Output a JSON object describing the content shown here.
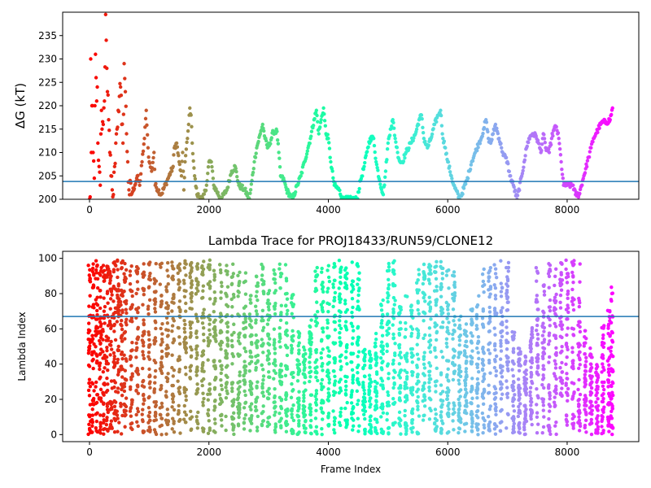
{
  "chart_data": [
    {
      "type": "scatter",
      "title": "",
      "xlabel": "",
      "ylabel": "ΔG (kT)",
      "xlim": [
        -450,
        9200
      ],
      "ylim": [
        200,
        240
      ],
      "xticks": [
        0,
        2000,
        4000,
        6000,
        8000
      ],
      "xtick_labels": [
        "0",
        "2000",
        "4000",
        "6000",
        "8000"
      ],
      "yticks": [
        200,
        205,
        210,
        215,
        220,
        225,
        230,
        235
      ],
      "ytick_labels": [
        "200",
        "205",
        "210",
        "215",
        "220",
        "225",
        "230",
        "235"
      ],
      "hline": 203.8,
      "hline_color": "#1f77b4",
      "colormap": "rainbow",
      "color_by": "frame index",
      "grid": false,
      "points": [
        [
          0,
          200
        ],
        [
          10,
          200.5
        ],
        [
          20,
          230
        ],
        [
          30,
          210
        ],
        [
          40,
          220
        ],
        [
          50,
          220
        ],
        [
          60,
          210
        ],
        [
          80,
          204.5
        ],
        [
          90,
          220
        ],
        [
          100,
          231
        ],
        [
          110,
          226
        ],
        [
          120,
          221
        ],
        [
          130,
          224
        ],
        [
          140,
          212
        ],
        [
          160,
          207
        ],
        [
          180,
          203
        ],
        [
          200,
          219
        ],
        [
          210,
          215
        ],
        [
          230,
          216
        ],
        [
          250,
          221
        ],
        [
          270,
          239.5
        ],
        [
          280,
          234
        ],
        [
          290,
          228
        ],
        [
          300,
          223
        ],
        [
          320,
          217
        ],
        [
          340,
          210
        ],
        [
          360,
          205
        ],
        [
          380,
          202
        ],
        [
          400,
          201
        ],
        [
          420,
          207
        ],
        [
          440,
          212
        ],
        [
          460,
          215
        ],
        [
          480,
          219
        ],
        [
          500,
          222
        ],
        [
          520,
          224
        ],
        [
          540,
          216
        ],
        [
          560,
          212
        ],
        [
          580,
          229
        ],
        [
          600,
          223
        ],
        [
          620,
          214
        ],
        [
          640,
          208
        ],
        [
          660,
          202
        ],
        [
          700,
          201
        ],
        [
          760,
          203
        ],
        [
          800,
          205
        ],
        [
          840,
          203
        ],
        [
          880,
          208
        ],
        [
          920,
          213
        ],
        [
          950,
          219
        ],
        [
          980,
          211
        ],
        [
          1000,
          208
        ],
        [
          1040,
          206
        ],
        [
          1080,
          210
        ],
        [
          1100,
          203
        ],
        [
          1200,
          201
        ],
        [
          1300,
          204
        ],
        [
          1400,
          207
        ],
        [
          1420,
          211
        ],
        [
          1460,
          212
        ],
        [
          1500,
          208
        ],
        [
          1540,
          205
        ],
        [
          1560,
          210
        ],
        [
          1580,
          202
        ],
        [
          1600,
          208
        ],
        [
          1640,
          213
        ],
        [
          1660,
          216
        ],
        [
          1680,
          219.5
        ],
        [
          1700,
          218
        ],
        [
          1720,
          212
        ],
        [
          1760,
          205
        ],
        [
          1800,
          201
        ],
        [
          1900,
          200
        ],
        [
          1960,
          203
        ],
        [
          2000,
          208
        ],
        [
          2040,
          208
        ],
        [
          2080,
          203
        ],
        [
          2200,
          200
        ],
        [
          2300,
          202
        ],
        [
          2380,
          206
        ],
        [
          2440,
          207
        ],
        [
          2500,
          203
        ],
        [
          2600,
          202
        ],
        [
          2680,
          200
        ],
        [
          2720,
          204
        ],
        [
          2760,
          208
        ],
        [
          2800,
          211
        ],
        [
          2860,
          214
        ],
        [
          2900,
          216
        ],
        [
          2940,
          213
        ],
        [
          2980,
          211
        ],
        [
          3020,
          212
        ],
        [
          3080,
          214.5
        ],
        [
          3140,
          214.5
        ],
        [
          3200,
          205
        ],
        [
          3260,
          204
        ],
        [
          3300,
          202
        ],
        [
          3400,
          200
        ],
        [
          3480,
          203
        ],
        [
          3540,
          205
        ],
        [
          3600,
          208
        ],
        [
          3660,
          211
        ],
        [
          3700,
          213
        ],
        [
          3760,
          217
        ],
        [
          3800,
          219
        ],
        [
          3840,
          214
        ],
        [
          3880,
          217
        ],
        [
          3920,
          219.5
        ],
        [
          3960,
          214
        ],
        [
          4000,
          213
        ],
        [
          4040,
          208
        ],
        [
          4100,
          203
        ],
        [
          4180,
          202
        ],
        [
          4240,
          200
        ],
        [
          4400,
          200
        ],
        [
          4480,
          200
        ],
        [
          4540,
          204
        ],
        [
          4600,
          207
        ],
        [
          4660,
          211
        ],
        [
          4700,
          213
        ],
        [
          4760,
          213
        ],
        [
          4800,
          208
        ],
        [
          4860,
          204
        ],
        [
          4920,
          201
        ],
        [
          4960,
          206
        ],
        [
          5000,
          212
        ],
        [
          5040,
          215
        ],
        [
          5080,
          217
        ],
        [
          5120,
          213
        ],
        [
          5160,
          210
        ],
        [
          5200,
          208
        ],
        [
          5240,
          208
        ],
        [
          5300,
          210
        ],
        [
          5380,
          212
        ],
        [
          5460,
          214
        ],
        [
          5520,
          217
        ],
        [
          5560,
          218
        ],
        [
          5600,
          213
        ],
        [
          5660,
          211
        ],
        [
          5720,
          213
        ],
        [
          5780,
          216
        ],
        [
          5840,
          218
        ],
        [
          5880,
          219
        ],
        [
          5920,
          213
        ],
        [
          5960,
          211
        ],
        [
          6000,
          208
        ],
        [
          6060,
          205
        ],
        [
          6100,
          203
        ],
        [
          6200,
          200
        ],
        [
          6320,
          204
        ],
        [
          6360,
          206
        ],
        [
          6400,
          208
        ],
        [
          6460,
          210
        ],
        [
          6520,
          212
        ],
        [
          6560,
          213
        ],
        [
          6600,
          215
        ],
        [
          6640,
          217
        ],
        [
          6680,
          213
        ],
        [
          6720,
          212
        ],
        [
          6760,
          214
        ],
        [
          6800,
          216
        ],
        [
          6860,
          213
        ],
        [
          6900,
          211
        ],
        [
          6920,
          210
        ],
        [
          7000,
          208
        ],
        [
          7040,
          205
        ],
        [
          7100,
          203
        ],
        [
          7160,
          200
        ],
        [
          7240,
          205
        ],
        [
          7280,
          208
        ],
        [
          7320,
          211
        ],
        [
          7360,
          213
        ],
        [
          7420,
          214
        ],
        [
          7480,
          213.5
        ],
        [
          7520,
          212
        ],
        [
          7560,
          210
        ],
        [
          7600,
          214
        ],
        [
          7640,
          211
        ],
        [
          7700,
          210
        ],
        [
          7740,
          213
        ],
        [
          7780,
          215
        ],
        [
          7820,
          215.5
        ],
        [
          7860,
          213
        ],
        [
          7900,
          208
        ],
        [
          7940,
          203
        ],
        [
          8000,
          203
        ],
        [
          8040,
          203
        ],
        [
          8100,
          203
        ],
        [
          8140,
          201
        ],
        [
          8200,
          201
        ],
        [
          8280,
          205
        ],
        [
          8360,
          209
        ],
        [
          8400,
          211
        ],
        [
          8440,
          213
        ],
        [
          8480,
          214
        ],
        [
          8520,
          215
        ],
        [
          8560,
          216
        ],
        [
          8600,
          216.5
        ],
        [
          8660,
          216.5
        ],
        [
          8720,
          217
        ],
        [
          8760,
          219.5
        ]
      ]
    },
    {
      "type": "scatter",
      "title": "Lambda Trace for PROJ18433/RUN59/CLONE12",
      "xlabel": "Frame Index",
      "ylabel": "Lambda Index",
      "xlim": [
        -450,
        9200
      ],
      "ylim": [
        -4,
        104
      ],
      "xticks": [
        0,
        2000,
        4000,
        6000,
        8000
      ],
      "xtick_labels": [
        "0",
        "2000",
        "4000",
        "6000",
        "8000"
      ],
      "yticks": [
        0,
        20,
        40,
        60,
        80,
        100
      ],
      "ytick_labels": [
        "0",
        "20",
        "40",
        "60",
        "80",
        "100"
      ],
      "hline": 67,
      "hline_color": "#1f77b4",
      "colormap": "rainbow",
      "color_by": "frame index",
      "grid": false,
      "bands": [
        [
          0,
          0,
          99
        ],
        [
          60,
          0,
          99
        ],
        [
          120,
          0,
          99
        ],
        [
          180,
          0,
          99
        ],
        [
          240,
          0,
          99
        ],
        [
          300,
          0,
          99
        ],
        [
          360,
          0,
          99
        ],
        [
          420,
          0,
          99
        ],
        [
          480,
          0,
          99
        ],
        [
          540,
          0,
          99
        ],
        [
          600,
          0,
          99
        ],
        [
          700,
          0,
          99
        ],
        [
          800,
          0,
          98
        ],
        [
          900,
          0,
          99
        ],
        [
          1000,
          0,
          99
        ],
        [
          1100,
          0,
          98
        ],
        [
          1200,
          0,
          99
        ],
        [
          1300,
          0,
          99
        ],
        [
          1400,
          0,
          99
        ],
        [
          1500,
          0,
          99
        ],
        [
          1600,
          0,
          99
        ],
        [
          1700,
          0,
          99
        ],
        [
          1800,
          0,
          99
        ],
        [
          1900,
          0,
          99
        ],
        [
          2000,
          0,
          99
        ],
        [
          2100,
          0,
          95
        ],
        [
          2200,
          2,
          99
        ],
        [
          2300,
          0,
          98
        ],
        [
          2400,
          0,
          99
        ],
        [
          2500,
          0,
          95
        ],
        [
          2600,
          0,
          92
        ],
        [
          2700,
          2,
          82
        ],
        [
          2800,
          2,
          90
        ],
        [
          2900,
          0,
          98
        ],
        [
          3000,
          0,
          82
        ],
        [
          3100,
          0,
          98
        ],
        [
          3200,
          0,
          99
        ],
        [
          3300,
          0,
          99
        ],
        [
          3400,
          0,
          80
        ],
        [
          3500,
          0,
          60
        ],
        [
          3600,
          0,
          50
        ],
        [
          3700,
          0,
          65
        ],
        [
          3800,
          0,
          95
        ],
        [
          3900,
          0,
          99
        ],
        [
          4000,
          2,
          99
        ],
        [
          4100,
          0,
          99
        ],
        [
          4200,
          2,
          99
        ],
        [
          4300,
          2,
          98
        ],
        [
          4400,
          2,
          99
        ],
        [
          4500,
          0,
          99
        ],
        [
          4600,
          0,
          50
        ],
        [
          4700,
          0,
          48
        ],
        [
          4800,
          0,
          58
        ],
        [
          4900,
          0,
          82
        ],
        [
          5000,
          0,
          99
        ],
        [
          5100,
          2,
          99
        ],
        [
          5200,
          0,
          74
        ],
        [
          5300,
          0,
          80
        ],
        [
          5400,
          0,
          74
        ],
        [
          5500,
          0,
          99
        ],
        [
          5600,
          0,
          99
        ],
        [
          5700,
          0,
          99
        ],
        [
          5800,
          0,
          99
        ],
        [
          5900,
          0,
          99
        ],
        [
          6000,
          0,
          99
        ],
        [
          6100,
          0,
          99
        ],
        [
          6200,
          0,
          68
        ],
        [
          6300,
          0,
          64
        ],
        [
          6400,
          0,
          72
        ],
        [
          6500,
          0,
          80
        ],
        [
          6600,
          0,
          99
        ],
        [
          6700,
          0,
          99
        ],
        [
          6800,
          0,
          99
        ],
        [
          6900,
          0,
          99
        ],
        [
          7000,
          0,
          99
        ],
        [
          7100,
          0,
          60
        ],
        [
          7200,
          0,
          50
        ],
        [
          7300,
          0,
          45
        ],
        [
          7400,
          0,
          62
        ],
        [
          7500,
          0,
          99
        ],
        [
          7600,
          0,
          85
        ],
        [
          7700,
          0,
          98
        ],
        [
          7800,
          0,
          95
        ],
        [
          7900,
          2,
          99
        ],
        [
          8000,
          2,
          99
        ],
        [
          8100,
          2,
          99
        ],
        [
          8200,
          2,
          99
        ],
        [
          8300,
          0,
          60
        ],
        [
          8400,
          0,
          50
        ],
        [
          8500,
          0,
          40
        ],
        [
          8600,
          0,
          62
        ],
        [
          8700,
          0,
          72
        ],
        [
          8750,
          0,
          85
        ]
      ]
    }
  ]
}
